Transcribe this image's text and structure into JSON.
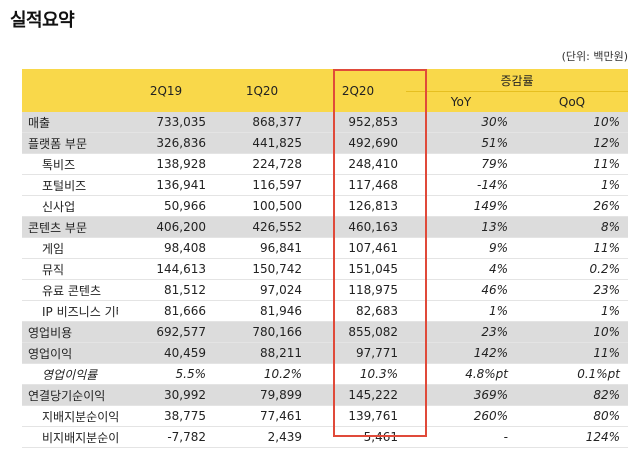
{
  "title": "실적요약",
  "unit_note": "(단위: 백만원)",
  "header": {
    "periods": [
      "2Q19",
      "1Q20",
      "2Q20"
    ],
    "growth_label": "증감률",
    "growth_cols": [
      "YoY",
      "QoQ"
    ]
  },
  "rows": [
    {
      "name": "매출",
      "v": [
        "733,035",
        "868,377",
        "952,853"
      ],
      "yoy": "30%",
      "qoq": "10%"
    },
    {
      "name": "플랫폼 부문",
      "v": [
        "326,836",
        "441,825",
        "492,690"
      ],
      "yoy": "51%",
      "qoq": "12%"
    },
    {
      "name": "톡비즈",
      "v": [
        "138,928",
        "224,728",
        "248,410"
      ],
      "yoy": "79%",
      "qoq": "11%"
    },
    {
      "name": "포털비즈",
      "v": [
        "136,941",
        "116,597",
        "117,468"
      ],
      "yoy": "-14%",
      "qoq": "1%"
    },
    {
      "name": "신사업",
      "v": [
        "50,966",
        "100,500",
        "126,813"
      ],
      "yoy": "149%",
      "qoq": "26%"
    },
    {
      "name": "콘텐츠 부문",
      "v": [
        "406,200",
        "426,552",
        "460,163"
      ],
      "yoy": "13%",
      "qoq": "8%"
    },
    {
      "name": "게임",
      "v": [
        "98,408",
        "96,841",
        "107,461"
      ],
      "yoy": "9%",
      "qoq": "11%"
    },
    {
      "name": "뮤직",
      "v": [
        "144,613",
        "150,742",
        "151,045"
      ],
      "yoy": "4%",
      "qoq": "0.2%"
    },
    {
      "name": "유료 콘텐츠",
      "v": [
        "81,512",
        "97,024",
        "118,975"
      ],
      "yoy": "46%",
      "qoq": "23%"
    },
    {
      "name": "IP 비즈니스 기타",
      "v": [
        "81,666",
        "81,946",
        "82,683"
      ],
      "yoy": "1%",
      "qoq": "1%"
    },
    {
      "name": "영업비용",
      "v": [
        "692,577",
        "780,166",
        "855,082"
      ],
      "yoy": "23%",
      "qoq": "10%"
    },
    {
      "name": "영업이익",
      "v": [
        "40,459",
        "88,211",
        "97,771"
      ],
      "yoy": "142%",
      "qoq": "11%"
    },
    {
      "name": "영업이익률",
      "v": [
        "5.5%",
        "10.2%",
        "10.3%"
      ],
      "yoy": "4.8%pt",
      "qoq": "0.1%pt"
    },
    {
      "name": "연결당기순이익",
      "v": [
        "30,992",
        "79,899",
        "145,222"
      ],
      "yoy": "369%",
      "qoq": "82%"
    },
    {
      "name": "지배지분순이익",
      "v": [
        "38,775",
        "77,461",
        "139,761"
      ],
      "yoy": "260%",
      "qoq": "80%"
    },
    {
      "name": "비지배지분순이익",
      "v": [
        "-7,782",
        "2,439",
        "5,461"
      ],
      "yoy": "-",
      "qoq": "124%"
    }
  ]
}
